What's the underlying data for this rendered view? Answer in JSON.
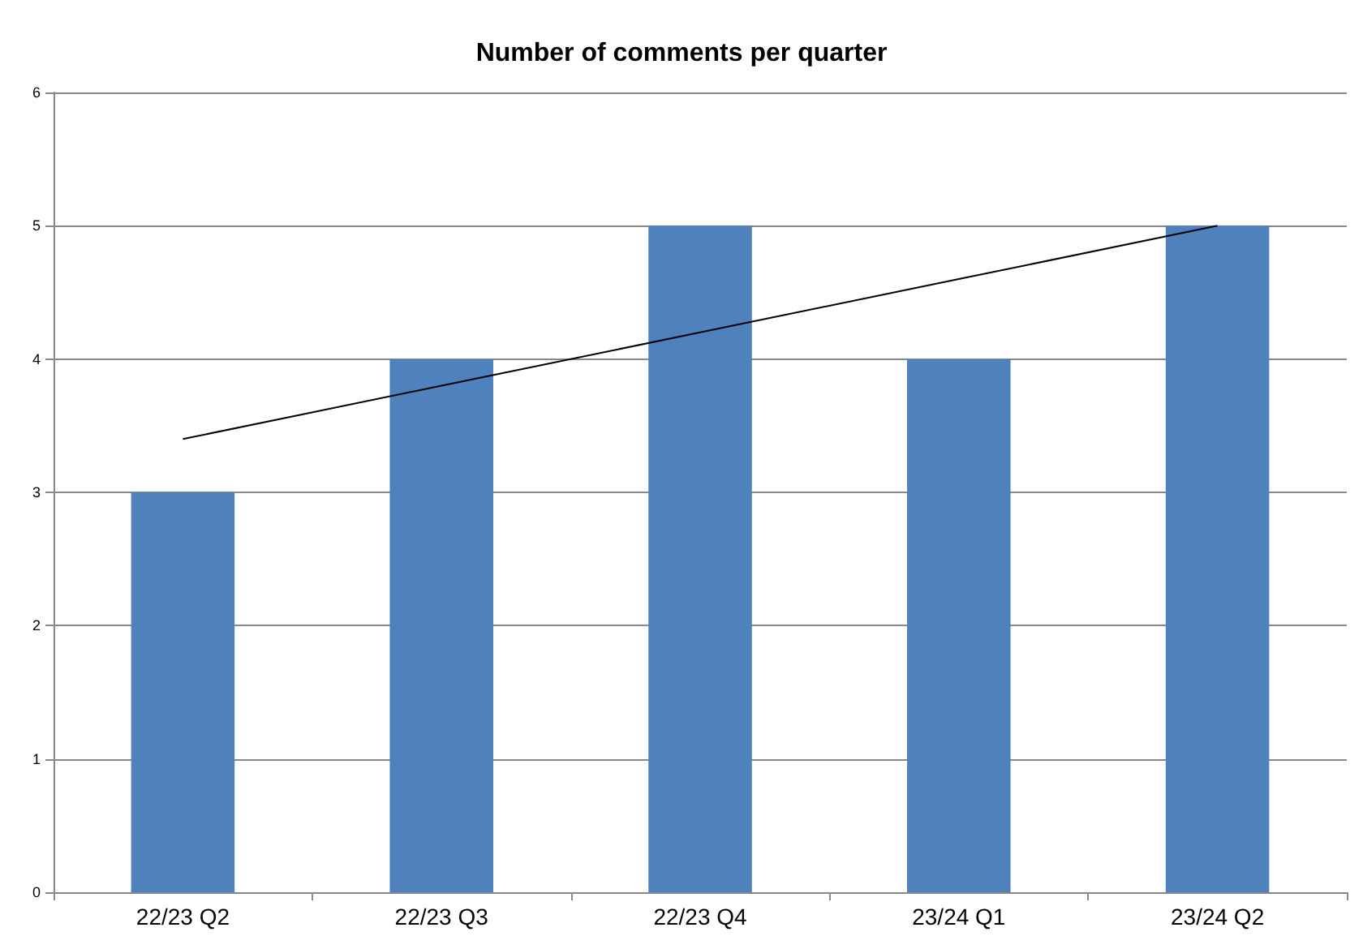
{
  "chart_data": {
    "type": "bar",
    "title": "Number of comments per quarter",
    "categories": [
      "22/23 Q2",
      "22/23 Q3",
      "22/23 Q4",
      "23/24 Q1",
      "23/24 Q2"
    ],
    "series": [
      {
        "color": "#4f81bd",
        "values": [
          3,
          4,
          5,
          4,
          5
        ]
      },
      {
        "type": "line",
        "color": "#000000",
        "x": [
          "22/23 Q2",
          "22/23 Q3",
          "22/23 Q4",
          "23/24 Q1",
          "23/24 Q2"
        ],
        "values": [
          3.4,
          3.8,
          4.2,
          4.6,
          5.0
        ],
        "marker": "none",
        "line_style": "solid"
      }
    ],
    "ylim": [
      0,
      6
    ],
    "yticks": [
      0,
      1,
      2,
      3,
      4,
      5,
      6
    ],
    "grid": "y"
  }
}
